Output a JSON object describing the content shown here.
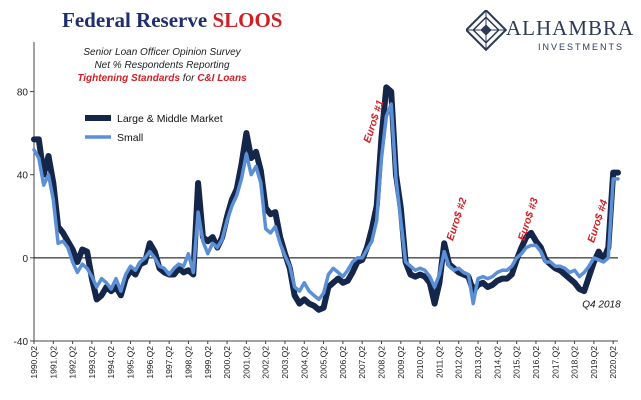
{
  "header": {
    "title_main": "Federal Reserve ",
    "title_accent": "SLOOS",
    "brand": "ALHAMBRA",
    "brand_sub": "INVESTMENTS"
  },
  "subtitle": {
    "line1": "Senior Loan Officer Opinion Survey",
    "line2": "Net % Respondents Reporting",
    "line3_accent": "Tightening Standards",
    "line3_mid": " for ",
    "line3_accent2": "C&I Loans"
  },
  "colors": {
    "large": "#14264a",
    "small": "#5b8fd6",
    "accent": "#d21f26",
    "title": "#1f2f6b"
  },
  "chart_data": {
    "type": "line",
    "title": "Federal Reserve SLOOS",
    "ylim": [
      -40,
      100
    ],
    "yticks": [
      -40,
      0,
      40,
      80
    ],
    "xrange": [
      1990.0,
      2020.25
    ],
    "x_tick_labels": [
      "1990.Q2",
      "1991.Q2",
      "1992.Q2",
      "1993.Q2",
      "1994.Q2",
      "1995.Q2",
      "1996.Q2",
      "1997.Q2",
      "1998.Q2",
      "1999.Q2",
      "2000.Q2",
      "2001.Q2",
      "2002.Q2",
      "2003.Q2",
      "2004.Q2",
      "2005.Q2",
      "2006.Q2",
      "2007.Q2",
      "2008.Q2",
      "2009.Q2",
      "2010.Q2",
      "2011.Q2",
      "2012.Q2",
      "2013.Q2",
      "2014.Q2",
      "2015.Q2",
      "2016.Q2",
      "2017.Q2",
      "2018.Q2",
      "2019.Q2",
      "2020.Q2"
    ],
    "legend": [
      "Large & Middle Market",
      "Small"
    ],
    "annotations": [
      {
        "text": "Euro$ #1",
        "x": 2007.4,
        "y": 55,
        "rotate": -72
      },
      {
        "text": "Euro$ #2",
        "x": 2011.7,
        "y": 8,
        "rotate": -72
      },
      {
        "text": "Euro$ #3",
        "x": 2015.4,
        "y": 8,
        "rotate": -72
      },
      {
        "text": "Euro$ #4",
        "x": 2019.0,
        "y": 7,
        "rotate": -72
      },
      {
        "text": "Q4 2018",
        "x": 2018.4,
        "y": -24,
        "rotate": 0
      }
    ],
    "series": [
      {
        "name": "Large & Middle Market",
        "points": [
          [
            1990.0,
            57
          ],
          [
            1990.25,
            57
          ],
          [
            1990.5,
            40
          ],
          [
            1990.75,
            49
          ],
          [
            1991.0,
            36
          ],
          [
            1991.25,
            15
          ],
          [
            1991.5,
            12
          ],
          [
            1991.75,
            8
          ],
          [
            1992.0,
            4
          ],
          [
            1992.25,
            -2
          ],
          [
            1992.5,
            4
          ],
          [
            1992.75,
            3
          ],
          [
            1993.0,
            -10
          ],
          [
            1993.25,
            -20
          ],
          [
            1993.5,
            -18
          ],
          [
            1993.75,
            -14
          ],
          [
            1994.0,
            -16
          ],
          [
            1994.25,
            -14
          ],
          [
            1994.5,
            -18
          ],
          [
            1994.75,
            -10
          ],
          [
            1995.0,
            -6
          ],
          [
            1995.25,
            -8
          ],
          [
            1995.5,
            -3
          ],
          [
            1995.75,
            -2
          ],
          [
            1996.0,
            7
          ],
          [
            1996.25,
            3
          ],
          [
            1996.5,
            -5
          ],
          [
            1996.75,
            -7
          ],
          [
            1997.0,
            -8
          ],
          [
            1997.25,
            -8
          ],
          [
            1997.5,
            -5
          ],
          [
            1997.75,
            -7
          ],
          [
            1998.0,
            -6
          ],
          [
            1998.25,
            -8
          ],
          [
            1998.5,
            36
          ],
          [
            1998.75,
            10
          ],
          [
            1999.0,
            8
          ],
          [
            1999.25,
            10
          ],
          [
            1999.5,
            5
          ],
          [
            1999.75,
            10
          ],
          [
            2000.0,
            20
          ],
          [
            2000.25,
            28
          ],
          [
            2000.5,
            33
          ],
          [
            2000.75,
            45
          ],
          [
            2001.0,
            60
          ],
          [
            2001.25,
            48
          ],
          [
            2001.5,
            51
          ],
          [
            2001.75,
            42
          ],
          [
            2002.0,
            24
          ],
          [
            2002.25,
            21
          ],
          [
            2002.5,
            22
          ],
          [
            2002.75,
            10
          ],
          [
            2003.0,
            2
          ],
          [
            2003.25,
            -5
          ],
          [
            2003.5,
            -18
          ],
          [
            2003.75,
            -22
          ],
          [
            2004.0,
            -20
          ],
          [
            2004.25,
            -22
          ],
          [
            2004.5,
            -23
          ],
          [
            2004.75,
            -25
          ],
          [
            2005.0,
            -24
          ],
          [
            2005.25,
            -14
          ],
          [
            2005.5,
            -12
          ],
          [
            2005.75,
            -10
          ],
          [
            2006.0,
            -12
          ],
          [
            2006.25,
            -11
          ],
          [
            2006.5,
            -7
          ],
          [
            2006.75,
            -2
          ],
          [
            2007.0,
            -1
          ],
          [
            2007.25,
            5
          ],
          [
            2007.5,
            14
          ],
          [
            2007.75,
            25
          ],
          [
            2008.0,
            58
          ],
          [
            2008.25,
            82
          ],
          [
            2008.5,
            80
          ],
          [
            2008.75,
            40
          ],
          [
            2009.0,
            24
          ],
          [
            2009.25,
            -2
          ],
          [
            2009.5,
            -8
          ],
          [
            2009.75,
            -9
          ],
          [
            2010.0,
            -8
          ],
          [
            2010.25,
            -9
          ],
          [
            2010.5,
            -12
          ],
          [
            2010.75,
            -22
          ],
          [
            2011.0,
            -12
          ],
          [
            2011.25,
            7
          ],
          [
            2011.5,
            -3
          ],
          [
            2011.75,
            -5
          ],
          [
            2012.0,
            -7
          ],
          [
            2012.25,
            -8
          ],
          [
            2012.5,
            -9
          ],
          [
            2012.75,
            -16
          ],
          [
            2013.0,
            -13
          ],
          [
            2013.25,
            -12
          ],
          [
            2013.5,
            -14
          ],
          [
            2013.75,
            -13
          ],
          [
            2014.0,
            -11
          ],
          [
            2014.25,
            -10
          ],
          [
            2014.5,
            -10
          ],
          [
            2014.75,
            -8
          ],
          [
            2015.0,
            -1
          ],
          [
            2015.25,
            5
          ],
          [
            2015.5,
            10
          ],
          [
            2015.75,
            12
          ],
          [
            2016.0,
            8
          ],
          [
            2016.25,
            5
          ],
          [
            2016.5,
            -1
          ],
          [
            2016.75,
            -3
          ],
          [
            2017.0,
            -5
          ],
          [
            2017.25,
            -6
          ],
          [
            2017.5,
            -8
          ],
          [
            2017.75,
            -10
          ],
          [
            2018.0,
            -12
          ],
          [
            2018.25,
            -15
          ],
          [
            2018.5,
            -16
          ],
          [
            2018.75,
            -9
          ],
          [
            2019.0,
            -2
          ],
          [
            2019.25,
            3
          ],
          [
            2019.5,
            -1
          ],
          [
            2019.75,
            5
          ],
          [
            2020.0,
            41
          ],
          [
            2020.25,
            41
          ]
        ]
      },
      {
        "name": "Small",
        "points": [
          [
            1990.0,
            52
          ],
          [
            1990.25,
            48
          ],
          [
            1990.5,
            35
          ],
          [
            1990.75,
            40
          ],
          [
            1991.0,
            28
          ],
          [
            1991.25,
            7
          ],
          [
            1991.5,
            8
          ],
          [
            1991.75,
            5
          ],
          [
            1992.0,
            -2
          ],
          [
            1992.25,
            -7
          ],
          [
            1992.5,
            -3
          ],
          [
            1992.75,
            -5
          ],
          [
            1993.0,
            -9
          ],
          [
            1993.25,
            -14
          ],
          [
            1993.5,
            -10
          ],
          [
            1993.75,
            -12
          ],
          [
            1994.0,
            -15
          ],
          [
            1994.25,
            -10
          ],
          [
            1994.5,
            -16
          ],
          [
            1994.75,
            -8
          ],
          [
            1995.0,
            -4
          ],
          [
            1995.25,
            -6
          ],
          [
            1995.5,
            -2
          ],
          [
            1995.75,
            0
          ],
          [
            1996.0,
            3
          ],
          [
            1996.25,
            0
          ],
          [
            1996.5,
            -4
          ],
          [
            1996.75,
            -5
          ],
          [
            1997.0,
            -8
          ],
          [
            1997.25,
            -5
          ],
          [
            1997.5,
            -3
          ],
          [
            1997.75,
            -4
          ],
          [
            1998.0,
            2
          ],
          [
            1998.25,
            -7
          ],
          [
            1998.5,
            22
          ],
          [
            1998.75,
            8
          ],
          [
            1999.0,
            2
          ],
          [
            1999.25,
            7
          ],
          [
            1999.5,
            5
          ],
          [
            1999.75,
            9
          ],
          [
            2000.0,
            18
          ],
          [
            2000.25,
            25
          ],
          [
            2000.5,
            30
          ],
          [
            2000.75,
            38
          ],
          [
            2001.0,
            50
          ],
          [
            2001.25,
            40
          ],
          [
            2001.5,
            44
          ],
          [
            2001.75,
            36
          ],
          [
            2002.0,
            14
          ],
          [
            2002.25,
            12
          ],
          [
            2002.5,
            15
          ],
          [
            2002.75,
            7
          ],
          [
            2003.0,
            1
          ],
          [
            2003.25,
            -4
          ],
          [
            2003.5,
            -14
          ],
          [
            2003.75,
            -16
          ],
          [
            2004.0,
            -12
          ],
          [
            2004.25,
            -16
          ],
          [
            2004.5,
            -18
          ],
          [
            2004.75,
            -20
          ],
          [
            2005.0,
            -17
          ],
          [
            2005.25,
            -8
          ],
          [
            2005.5,
            -5
          ],
          [
            2005.75,
            -7
          ],
          [
            2006.0,
            -9
          ],
          [
            2006.25,
            -6
          ],
          [
            2006.5,
            -2
          ],
          [
            2006.75,
            0
          ],
          [
            2007.0,
            0
          ],
          [
            2007.25,
            4
          ],
          [
            2007.5,
            8
          ],
          [
            2007.75,
            18
          ],
          [
            2008.0,
            48
          ],
          [
            2008.25,
            68
          ],
          [
            2008.5,
            74
          ],
          [
            2008.75,
            38
          ],
          [
            2009.0,
            18
          ],
          [
            2009.25,
            -2
          ],
          [
            2009.5,
            -4
          ],
          [
            2009.75,
            -6
          ],
          [
            2010.0,
            -5
          ],
          [
            2010.25,
            -6
          ],
          [
            2010.5,
            -9
          ],
          [
            2010.75,
            -14
          ],
          [
            2011.0,
            -8
          ],
          [
            2011.25,
            3
          ],
          [
            2011.5,
            -4
          ],
          [
            2011.75,
            -6
          ],
          [
            2012.0,
            -5
          ],
          [
            2012.25,
            -7
          ],
          [
            2012.5,
            -8
          ],
          [
            2012.75,
            -22
          ],
          [
            2013.0,
            -10
          ],
          [
            2013.25,
            -9
          ],
          [
            2013.5,
            -10
          ],
          [
            2013.75,
            -9
          ],
          [
            2014.0,
            -7
          ],
          [
            2014.25,
            -6
          ],
          [
            2014.5,
            -6
          ],
          [
            2014.75,
            -4
          ],
          [
            2015.0,
            0
          ],
          [
            2015.25,
            2
          ],
          [
            2015.5,
            5
          ],
          [
            2015.75,
            6
          ],
          [
            2016.0,
            6
          ],
          [
            2016.25,
            3
          ],
          [
            2016.5,
            -2
          ],
          [
            2016.75,
            -2
          ],
          [
            2017.0,
            -4
          ],
          [
            2017.25,
            -4
          ],
          [
            2017.5,
            -5
          ],
          [
            2017.75,
            -7
          ],
          [
            2018.0,
            -6
          ],
          [
            2018.25,
            -9
          ],
          [
            2018.5,
            -7
          ],
          [
            2018.75,
            -4
          ],
          [
            2019.0,
            0
          ],
          [
            2019.25,
            -1
          ],
          [
            2019.5,
            -2
          ],
          [
            2019.75,
            0
          ],
          [
            2020.0,
            38
          ],
          [
            2020.25,
            38
          ]
        ]
      }
    ]
  }
}
